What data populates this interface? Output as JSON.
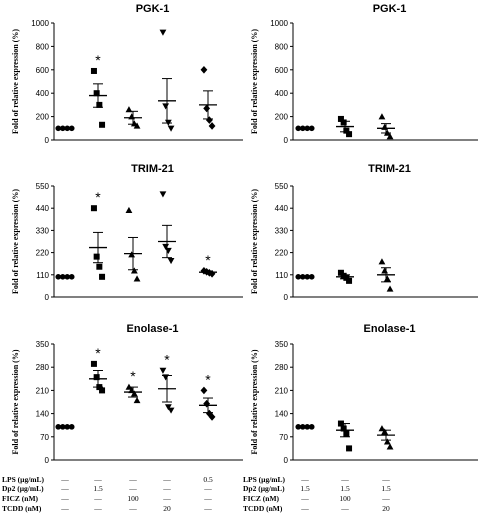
{
  "chart_data": [
    {
      "type": "scatter",
      "title": "PGK-1",
      "ylabel": "Fold of relative expression (%)",
      "ylim": [
        0,
        1000
      ],
      "yticks": [
        0,
        200,
        400,
        600,
        800,
        1000
      ],
      "groups": [
        {
          "marker": "circle",
          "points": [
            100,
            100,
            100,
            100
          ],
          "mean": 100,
          "sem": 0,
          "star": ""
        },
        {
          "marker": "square",
          "points": [
            590,
            400,
            300,
            130
          ],
          "mean": 380,
          "sem": 100,
          "star": "*"
        },
        {
          "marker": "triangle",
          "points": [
            260,
            200,
            140,
            120
          ],
          "mean": 190,
          "sem": 55,
          "star": ""
        },
        {
          "marker": "down-triangle",
          "points": [
            920,
            290,
            150,
            100
          ],
          "mean": 335,
          "sem": 190,
          "star": ""
        },
        {
          "marker": "diamond",
          "points": [
            600,
            270,
            170,
            120
          ],
          "mean": 300,
          "sem": 120,
          "star": ""
        }
      ]
    },
    {
      "type": "scatter",
      "title": "PGK-1",
      "ylabel": "Fold of relative expression (%)",
      "ylim": [
        0,
        1000
      ],
      "yticks": [
        0,
        200,
        400,
        600,
        800,
        1000
      ],
      "groups": [
        {
          "marker": "circle",
          "points": [
            100,
            100,
            100,
            100
          ],
          "mean": 100,
          "sem": 0,
          "star": ""
        },
        {
          "marker": "square",
          "points": [
            180,
            150,
            80,
            50
          ],
          "mean": 115,
          "sem": 45,
          "star": ""
        },
        {
          "marker": "triangle",
          "points": [
            200,
            110,
            60,
            30
          ],
          "mean": 100,
          "sem": 40,
          "star": ""
        }
      ]
    },
    {
      "type": "scatter",
      "title": "TRIM-21",
      "ylabel": "Fold of relative expression (%)",
      "ylim": [
        0,
        550
      ],
      "yticks": [
        0,
        110,
        220,
        330,
        440,
        550
      ],
      "groups": [
        {
          "marker": "circle",
          "points": [
            100,
            100,
            100,
            100
          ],
          "mean": 100,
          "sem": 0,
          "star": ""
        },
        {
          "marker": "square",
          "points": [
            440,
            200,
            150,
            100
          ],
          "mean": 245,
          "sem": 75,
          "star": "*"
        },
        {
          "marker": "triangle",
          "points": [
            430,
            210,
            130,
            90
          ],
          "mean": 215,
          "sem": 80,
          "star": ""
        },
        {
          "marker": "down-triangle",
          "points": [
            510,
            250,
            230,
            180
          ],
          "mean": 275,
          "sem": 80,
          "star": ""
        },
        {
          "marker": "diamond",
          "points": [
            130,
            125,
            120,
            115
          ],
          "mean": 123,
          "sem": 5,
          "star": "*"
        }
      ]
    },
    {
      "type": "scatter",
      "title": "TRIM-21",
      "ylabel": "Fold of relative expression (%)",
      "ylim": [
        0,
        550
      ],
      "yticks": [
        0,
        110,
        220,
        330,
        440,
        550
      ],
      "groups": [
        {
          "marker": "circle",
          "points": [
            100,
            100,
            100,
            100
          ],
          "mean": 100,
          "sem": 0,
          "star": ""
        },
        {
          "marker": "square",
          "points": [
            120,
            105,
            95,
            80
          ],
          "mean": 100,
          "sem": 10,
          "star": ""
        },
        {
          "marker": "triangle",
          "points": [
            175,
            130,
            90,
            40
          ],
          "mean": 110,
          "sem": 35,
          "star": ""
        }
      ]
    },
    {
      "type": "scatter",
      "title": "Enolase-1",
      "ylabel": "Fold of relative expression (%)",
      "ylim": [
        0,
        350
      ],
      "yticks": [
        0,
        70,
        140,
        210,
        280,
        350
      ],
      "groups": [
        {
          "marker": "circle",
          "points": [
            100,
            100,
            100,
            100
          ],
          "mean": 100,
          "sem": 0,
          "star": ""
        },
        {
          "marker": "square",
          "points": [
            290,
            250,
            220,
            210
          ],
          "mean": 245,
          "sem": 25,
          "star": "*"
        },
        {
          "marker": "triangle",
          "points": [
            220,
            210,
            200,
            180
          ],
          "mean": 205,
          "sem": 15,
          "star": "*"
        },
        {
          "marker": "down-triangle",
          "points": [
            270,
            250,
            160,
            150
          ],
          "mean": 215,
          "sem": 40,
          "star": "*"
        },
        {
          "marker": "diamond",
          "points": [
            210,
            170,
            140,
            130
          ],
          "mean": 165,
          "sem": 22,
          "star": "*"
        }
      ]
    },
    {
      "type": "scatter",
      "title": "Enolase-1",
      "ylabel": "Fold of relative expression (%)",
      "ylim": [
        0,
        350
      ],
      "yticks": [
        0,
        70,
        140,
        210,
        280,
        350
      ],
      "groups": [
        {
          "marker": "circle",
          "points": [
            100,
            100,
            100,
            100
          ],
          "mean": 100,
          "sem": 0,
          "star": ""
        },
        {
          "marker": "square",
          "points": [
            110,
            95,
            80,
            35
          ],
          "mean": 90,
          "sem": 20,
          "star": ""
        },
        {
          "marker": "triangle",
          "points": [
            95,
            85,
            55,
            40
          ],
          "mean": 75,
          "sem": 15,
          "star": ""
        }
      ]
    }
  ],
  "conditions": {
    "left": {
      "labels": [
        "LPS (µg/mL)",
        "Dp2 (µg/mL)",
        "FICZ (nM)",
        "TCDD (nM)"
      ],
      "rows": [
        [
          "—",
          "—",
          "—",
          "—",
          "0.5"
        ],
        [
          "—",
          "1.5",
          "—",
          "—",
          "—"
        ],
        [
          "—",
          "—",
          "100",
          "—",
          "—"
        ],
        [
          "—",
          "—",
          "—",
          "20",
          "—"
        ]
      ]
    },
    "right": {
      "labels": [
        "LPS (µg/mL)",
        "Dp2 (µg/mL)",
        "FICZ (nM)",
        "TCDD (nM)"
      ],
      "rows": [
        [
          "—",
          "—",
          "—"
        ],
        [
          "1.5",
          "1.5",
          "1.5"
        ],
        [
          "—",
          "100",
          "—"
        ],
        [
          "—",
          "—",
          "20"
        ]
      ]
    }
  }
}
